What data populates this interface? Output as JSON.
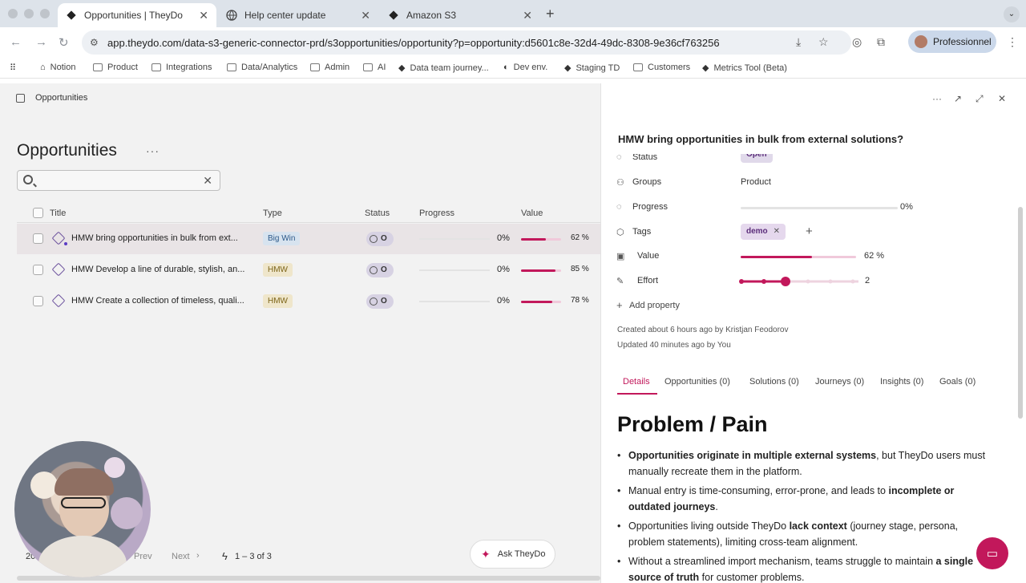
{
  "browser": {
    "tabs": [
      {
        "title": "Opportunities | TheyDo",
        "icon": "theydo-icon"
      },
      {
        "title": "Help center update",
        "icon": "globe-icon"
      },
      {
        "title": "Amazon S3",
        "icon": "theydo-icon"
      }
    ],
    "url": "app.theydo.com/data-s3-generic-connector-prd/s3opportunities/opportunity?p=opportunity:d5601c8e-32d4-49dc-8308-9e36cf763256",
    "profile_label": "Professionnel",
    "bookmarks": [
      "Notion",
      "Product",
      "Integrations",
      "Data/Analytics",
      "Admin",
      "AI",
      "Data team journey...",
      "Dev env.",
      "Staging TD",
      "Customers",
      "Metrics Tool (Beta)"
    ]
  },
  "left": {
    "breadcrumb": "Opportunities",
    "page_title": "Opportunities",
    "title_menu": "···",
    "search": {
      "value": "",
      "placeholder": ""
    },
    "columns": {
      "title": "Title",
      "type": "Type",
      "status": "Status",
      "progress": "Progress",
      "value": "Value"
    },
    "rows": [
      {
        "title": "HMW bring opportunities in bulk from ext...",
        "type": "Big Win",
        "status": "O",
        "progress": "0%",
        "value_text": "62 %",
        "value": 0.62
      },
      {
        "title": "HMW Develop a line of durable, stylish, an...",
        "type": "HMW",
        "status": "O",
        "progress": "0%",
        "value_text": "85 %",
        "value": 0.85
      },
      {
        "title": "HMW Create a collection of timeless, quali...",
        "type": "HMW",
        "status": "O",
        "progress": "0%",
        "value_text": "78 %",
        "value": 0.78
      }
    ],
    "footer": {
      "page_size": "20",
      "prev": "Prev",
      "next": "Next",
      "count": "1 – 3 of 3"
    },
    "ask_label": "Ask TheyDo"
  },
  "right": {
    "title": "HMW bring opportunities in bulk from external solutions?",
    "status_label": "Status",
    "status_value": "Open",
    "groups_label": "Groups",
    "groups_value": "Product",
    "progress_label": "Progress",
    "progress_value": "0%",
    "tags_label": "Tags",
    "tag": "demo",
    "value_label": "Value",
    "value_text": "62 %",
    "value": 0.62,
    "effort_label": "Effort",
    "effort_value": "2",
    "add_property": "Add property",
    "created": "Created about 6 hours ago by Kristjan Feodorov",
    "updated": "Updated 40 minutes ago by You",
    "tabs": [
      "Details",
      "Opportunities (0)",
      "Solutions (0)",
      "Journeys (0)",
      "Insights (0)",
      "Goals (0)"
    ],
    "heading": "Problem / Pain",
    "bullets": [
      {
        "b": "Opportunities originate in multiple external systems",
        "t": ", but TheyDo users must manually recreate them in the platform."
      },
      {
        "pre": "Manual entry is time-consuming, error-prone, and leads to ",
        "b": "incomplete or outdated journeys",
        "t": "."
      },
      {
        "pre": "Opportunities living outside TheyDo ",
        "b": "lack context",
        "t": " (journey stage, persona, problem statements), limiting cross-team alignment."
      },
      {
        "pre": "Without a streamlined import mechanism, teams struggle to maintain ",
        "b": "a single source of truth",
        "t": " for customer problems."
      }
    ]
  }
}
